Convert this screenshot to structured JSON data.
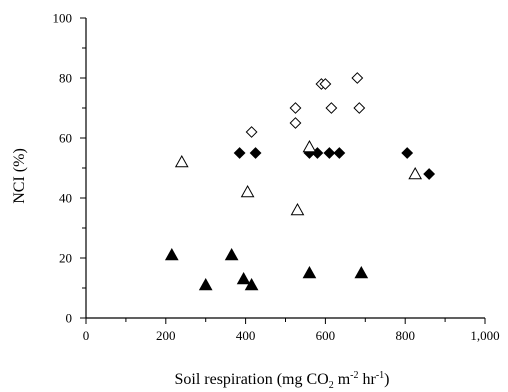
{
  "chart_data": {
    "type": "scatter",
    "title": "",
    "xlabel": "Soil respiration (mg CO",
    "xlabel_sub": "2",
    "xlabel_mid": " m",
    "xlabel_sup1": "-2",
    "xlabel_mid2": " hr",
    "xlabel_sup2": "-1",
    "xlabel_end": ")",
    "ylabel": "NCI (%)",
    "xlim": [
      0,
      1000
    ],
    "ylim": [
      0,
      100
    ],
    "x_ticks": [
      0,
      200,
      400,
      600,
      800,
      1000
    ],
    "x_tick_labels": [
      "0",
      "200",
      "400",
      "600",
      "800",
      "1,000"
    ],
    "y_ticks": [
      0,
      20,
      40,
      60,
      80,
      100
    ],
    "y_tick_labels": [
      "0",
      "20",
      "40",
      "60",
      "80",
      "100"
    ],
    "grid": false,
    "series": [
      {
        "marker": "diamond-open",
        "points": [
          [
            415,
            62
          ],
          [
            525,
            65
          ],
          [
            525,
            70
          ],
          [
            590,
            78
          ],
          [
            600,
            78
          ],
          [
            615,
            70
          ],
          [
            680,
            80
          ],
          [
            685,
            70
          ]
        ]
      },
      {
        "marker": "diamond-filled",
        "points": [
          [
            385,
            55
          ],
          [
            425,
            55
          ],
          [
            560,
            55
          ],
          [
            580,
            55
          ],
          [
            610,
            55
          ],
          [
            635,
            55
          ],
          [
            805,
            55
          ],
          [
            860,
            48
          ]
        ]
      },
      {
        "marker": "triangle-open",
        "points": [
          [
            240,
            52
          ],
          [
            405,
            42
          ],
          [
            530,
            36
          ],
          [
            560,
            57
          ],
          [
            825,
            48
          ]
        ]
      },
      {
        "marker": "triangle-filled",
        "points": [
          [
            215,
            21
          ],
          [
            300,
            11
          ],
          [
            365,
            21
          ],
          [
            395,
            13
          ],
          [
            415,
            11
          ],
          [
            560,
            15
          ],
          [
            690,
            15
          ]
        ]
      }
    ]
  }
}
